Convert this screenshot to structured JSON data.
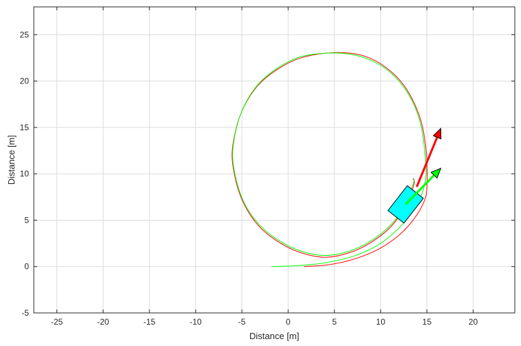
{
  "chart_data": {
    "type": "line",
    "title": "",
    "xlabel": "Distance [m]",
    "ylabel": "Distance [m]",
    "xlim": [
      -27.5,
      24.5
    ],
    "ylim": [
      -5,
      28
    ],
    "xticks": [
      -25,
      -20,
      -15,
      -10,
      -5,
      0,
      5,
      10,
      15,
      20
    ],
    "yticks": [
      -5,
      0,
      5,
      10,
      15,
      20,
      25
    ],
    "grid": true,
    "legend": "none",
    "colors": {
      "red": "#ff0000",
      "green": "#00ff00",
      "vehicle": "#00ffff"
    },
    "series": [
      {
        "color": "#ff0000",
        "points": [
          [
            1.7,
            0.0
          ],
          [
            4,
            0.15
          ],
          [
            6,
            0.5
          ],
          [
            8,
            1.1
          ],
          [
            10,
            2.0
          ],
          [
            12,
            3.4
          ],
          [
            13.5,
            5.0
          ],
          [
            14.6,
            6.8
          ],
          [
            15.0,
            8.5
          ],
          [
            14.95,
            12.0
          ],
          [
            14.49,
            15.2
          ],
          [
            13.64,
            17.6
          ],
          [
            12.39,
            19.7
          ],
          [
            10.79,
            21.3
          ],
          [
            8.89,
            22.45
          ],
          [
            6.79,
            23.0
          ],
          [
            4.0,
            23.0
          ],
          [
            1.21,
            22.45
          ],
          [
            -1.11,
            21.3
          ],
          [
            -3.11,
            19.7
          ],
          [
            -4.59,
            17.6
          ],
          [
            -5.54,
            15.2
          ],
          [
            -6.06,
            12.0
          ],
          [
            -5.54,
            8.8
          ],
          [
            -4.59,
            6.4
          ],
          [
            -3.11,
            4.3
          ],
          [
            -1.11,
            2.7
          ],
          [
            1.21,
            1.55
          ],
          [
            4.0,
            1.0
          ],
          [
            6.79,
            1.55
          ],
          [
            9.11,
            2.7
          ],
          [
            11.11,
            4.3
          ],
          [
            12.59,
            6.4
          ],
          [
            13.59,
            8.8
          ],
          [
            13.5,
            9.5
          ]
        ]
      },
      {
        "color": "#00ff00",
        "points": [
          [
            -1.8,
            0.0
          ],
          [
            1,
            0.1
          ],
          [
            4,
            0.4
          ],
          [
            7,
            1.1
          ],
          [
            9.5,
            2.2
          ],
          [
            11.5,
            3.7
          ],
          [
            13.2,
            5.6
          ],
          [
            14.4,
            7.7
          ],
          [
            14.9,
            9.8
          ],
          [
            14.8,
            12.0
          ],
          [
            14.41,
            15.0
          ],
          [
            13.58,
            17.5
          ],
          [
            12.31,
            19.6
          ],
          [
            10.72,
            21.2
          ],
          [
            8.8,
            22.3
          ],
          [
            6.71,
            22.9
          ],
          [
            4.0,
            23.0
          ],
          [
            1.29,
            22.6
          ],
          [
            -1.0,
            21.5
          ],
          [
            -3.01,
            19.9
          ],
          [
            -4.51,
            17.8
          ],
          [
            -5.5,
            15.3
          ],
          [
            -6.0,
            12.0
          ],
          [
            -5.5,
            8.9
          ],
          [
            -4.51,
            6.4
          ],
          [
            -3.01,
            4.4
          ],
          [
            -1.0,
            2.8
          ],
          [
            1.29,
            1.7
          ],
          [
            4.0,
            1.2
          ],
          [
            6.71,
            1.7
          ],
          [
            9.0,
            2.8
          ],
          [
            11.01,
            4.4
          ],
          [
            12.51,
            6.4
          ],
          [
            13.5,
            8.9
          ],
          [
            13.6,
            9.5
          ]
        ]
      }
    ],
    "vehicle": {
      "x": 12.7,
      "y": 6.7,
      "length": 3.4,
      "width": 2.2,
      "heading_deg": 52
    },
    "arrows": [
      {
        "color": "#ff0000",
        "from": [
          13.9,
          8.6
        ],
        "to": [
          16.5,
          14.9
        ]
      },
      {
        "color": "#00ff00",
        "from": [
          12.7,
          6.7
        ],
        "to": [
          16.5,
          10.6
        ]
      }
    ]
  }
}
